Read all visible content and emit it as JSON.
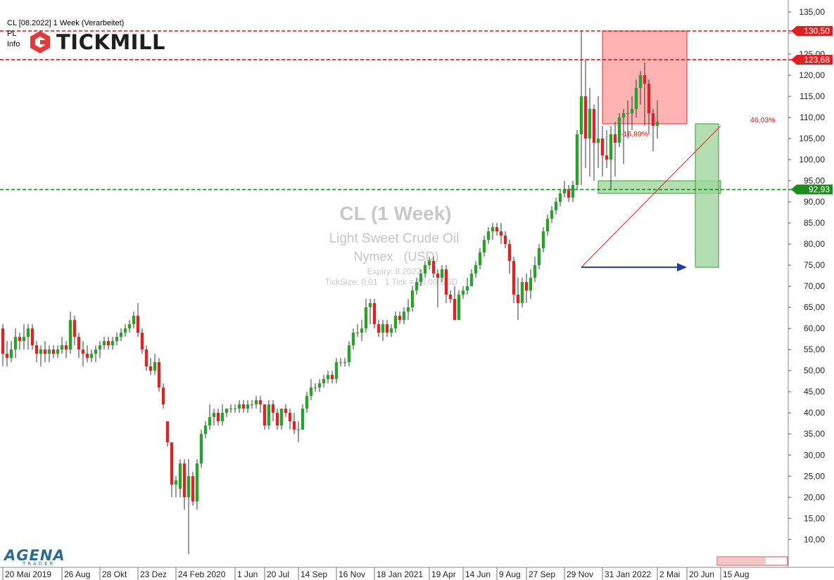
{
  "header": {
    "instrument_line": "CL [08.2022] 1 Week (Verarbeitet)",
    "line2": "PL",
    "line3": "Info"
  },
  "brand": {
    "name": "TICKMILL",
    "logo_color": "#e03a3a"
  },
  "footer_brand": {
    "name": "AGENA",
    "sub": "TRADER",
    "color": "#2e6a96"
  },
  "watermark": {
    "title": "CL (1 Week)",
    "name": "Light Sweet Crude Oil",
    "exchange": "Nymex   (USD)",
    "expiry": "Expiry: 8.2022",
    "ticksize": "TickSize: 0,01   1 Tick = 10,00 USD"
  },
  "annotations": {
    "pct_left": "-16,89%",
    "pct_right": "46,03%",
    "level_red_1": "130,50",
    "level_red_2": "123,68",
    "level_green": "92,93"
  },
  "colors": {
    "up": "#2ca02c",
    "down": "#d62728",
    "red_zone": "#ff9a9a",
    "green_zone": "#9fd69f",
    "red_line": "#e01010",
    "green_line": "#1a8a1a",
    "arrow": "#1f3d9e"
  },
  "chart_data": {
    "type": "candlestick",
    "y_axis": {
      "min": 5,
      "max": 136,
      "ticks": [
        "135,00",
        "130,00",
        "125,00",
        "120,00",
        "115,00",
        "110,00",
        "105,00",
        "100,00",
        "95,00",
        "90,00",
        "85,00",
        "80,00",
        "75,00",
        "70,00",
        "65,00",
        "60,00",
        "55,00",
        "50,00",
        "45,00",
        "40,00",
        "35,00",
        "30,00",
        "25,00",
        "20,00",
        "15,00",
        "10,00"
      ],
      "tick_values": [
        135,
        130,
        125,
        120,
        115,
        110,
        105,
        100,
        95,
        90,
        85,
        80,
        75,
        70,
        65,
        60,
        55,
        50,
        45,
        40,
        35,
        30,
        25,
        20,
        15,
        10
      ],
      "side": "right"
    },
    "x_axis": {
      "labels": [
        "20 Mai 2019",
        "26 Aug",
        "28 Okt",
        "23 Dez",
        "24 Feb 2020",
        "1 Jun",
        "20 Jul",
        "14 Sep",
        "16 Nov",
        "18 Jan 2021",
        "19 Apr",
        "14 Jun",
        "9 Aug",
        "27 Sep",
        "29 Nov",
        "31 Jan 2022",
        "2 Mai",
        "20 Jun",
        "15 Aug"
      ],
      "label_week_index": [
        0,
        14,
        23,
        32,
        41,
        55,
        62,
        70,
        79,
        88,
        101,
        109,
        117,
        124,
        133,
        142,
        155,
        162,
        170
      ]
    },
    "horizontal_levels": [
      {
        "value": 130.5,
        "label": "130,50",
        "color": "red"
      },
      {
        "value": 123.68,
        "label": "123,68",
        "color": "red"
      },
      {
        "value": 92.93,
        "label": "92,93",
        "color": "green"
      }
    ],
    "zones": [
      {
        "kind": "red",
        "x_from": 142,
        "x_to": 162,
        "y_from": 108.5,
        "y_to": 130.5
      },
      {
        "kind": "green",
        "x_from": 141,
        "x_to": 170,
        "y_from": 92.0,
        "y_to": 95.0
      },
      {
        "kind": "green",
        "x_from": 164,
        "x_to": 169.5,
        "y_from": 74.5,
        "y_to": 108.5
      }
    ],
    "trend_line": {
      "from": [
        137,
        74.5
      ],
      "to": [
        170,
        108.0
      ]
    },
    "arrow": {
      "from": [
        137,
        74.5
      ],
      "to": [
        162,
        74.5
      ]
    },
    "candles": [
      {
        "o": 60,
        "h": 61,
        "l": 51,
        "c": 54
      },
      {
        "o": 54,
        "h": 57,
        "l": 51,
        "c": 53
      },
      {
        "o": 53,
        "h": 57,
        "l": 52,
        "c": 55
      },
      {
        "o": 55,
        "h": 60,
        "l": 53,
        "c": 58
      },
      {
        "o": 58,
        "h": 59,
        "l": 55,
        "c": 57
      },
      {
        "o": 57,
        "h": 61,
        "l": 55,
        "c": 58
      },
      {
        "o": 58,
        "h": 61,
        "l": 55,
        "c": 60
      },
      {
        "o": 60,
        "h": 61,
        "l": 55,
        "c": 56
      },
      {
        "o": 56,
        "h": 57,
        "l": 52,
        "c": 54
      },
      {
        "o": 54,
        "h": 56,
        "l": 51,
        "c": 55
      },
      {
        "o": 55,
        "h": 57,
        "l": 52,
        "c": 54
      },
      {
        "o": 54,
        "h": 56,
        "l": 52,
        "c": 55
      },
      {
        "o": 55,
        "h": 56,
        "l": 53,
        "c": 54
      },
      {
        "o": 54,
        "h": 56,
        "l": 53,
        "c": 55
      },
      {
        "o": 55,
        "h": 58,
        "l": 54,
        "c": 56
      },
      {
        "o": 56,
        "h": 57,
        "l": 53,
        "c": 55
      },
      {
        "o": 55,
        "h": 64,
        "l": 54,
        "c": 62
      },
      {
        "o": 62,
        "h": 63,
        "l": 56,
        "c": 58
      },
      {
        "o": 58,
        "h": 59,
        "l": 53,
        "c": 55
      },
      {
        "o": 55,
        "h": 57,
        "l": 51,
        "c": 54
      },
      {
        "o": 54,
        "h": 56,
        "l": 52,
        "c": 53
      },
      {
        "o": 53,
        "h": 55,
        "l": 52,
        "c": 54
      },
      {
        "o": 54,
        "h": 56,
        "l": 52,
        "c": 55
      },
      {
        "o": 55,
        "h": 57,
        "l": 53,
        "c": 56
      },
      {
        "o": 56,
        "h": 58,
        "l": 55,
        "c": 57
      },
      {
        "o": 57,
        "h": 58,
        "l": 55,
        "c": 56
      },
      {
        "o": 56,
        "h": 58,
        "l": 55,
        "c": 57
      },
      {
        "o": 57,
        "h": 59,
        "l": 56,
        "c": 58
      },
      {
        "o": 58,
        "h": 60,
        "l": 57,
        "c": 59
      },
      {
        "o": 59,
        "h": 61,
        "l": 58,
        "c": 60
      },
      {
        "o": 60,
        "h": 62,
        "l": 59,
        "c": 61
      },
      {
        "o": 61,
        "h": 64,
        "l": 60,
        "c": 63
      },
      {
        "o": 63,
        "h": 66,
        "l": 58,
        "c": 59
      },
      {
        "o": 59,
        "h": 60,
        "l": 54,
        "c": 55
      },
      {
        "o": 55,
        "h": 56,
        "l": 50,
        "c": 51
      },
      {
        "o": 51,
        "h": 53,
        "l": 49,
        "c": 50
      },
      {
        "o": 50,
        "h": 54,
        "l": 49,
        "c": 52
      },
      {
        "o": 52,
        "h": 53,
        "l": 45,
        "c": 46
      },
      {
        "o": 46,
        "h": 47,
        "l": 41,
        "c": 42
      },
      {
        "o": 38,
        "h": 37,
        "l": 32,
        "c": 33
      },
      {
        "o": 33,
        "h": 33,
        "l": 20,
        "c": 23
      },
      {
        "o": 23,
        "h": 25,
        "l": 20,
        "c": 24
      },
      {
        "o": 22,
        "h": 29,
        "l": 20,
        "c": 28
      },
      {
        "o": 28,
        "h": 29,
        "l": 17,
        "c": 20
      },
      {
        "o": 20,
        "h": 29,
        "l": 6.5,
        "c": 25
      },
      {
        "o": 25,
        "h": 26,
        "l": 18,
        "c": 19
      },
      {
        "o": 19,
        "h": 29,
        "l": 17,
        "c": 28
      },
      {
        "o": 28,
        "h": 36,
        "l": 27,
        "c": 35
      },
      {
        "o": 35,
        "h": 38,
        "l": 34,
        "c": 37
      },
      {
        "o": 37,
        "h": 42,
        "l": 36,
        "c": 39
      },
      {
        "o": 39,
        "h": 41,
        "l": 37,
        "c": 40
      },
      {
        "o": 40,
        "h": 41,
        "l": 37,
        "c": 38
      },
      {
        "o": 38,
        "h": 42,
        "l": 37,
        "c": 40
      },
      {
        "o": 40,
        "h": 41,
        "l": 39,
        "c": 41
      },
      {
        "o": 41,
        "h": 42,
        "l": 40,
        "c": 41
      },
      {
        "o": 41,
        "h": 42,
        "l": 40,
        "c": 41
      },
      {
        "o": 41,
        "h": 43,
        "l": 40,
        "c": 42
      },
      {
        "o": 42,
        "h": 43,
        "l": 40,
        "c": 41
      },
      {
        "o": 41,
        "h": 43,
        "l": 40,
        "c": 42
      },
      {
        "o": 42,
        "h": 43,
        "l": 41,
        "c": 42
      },
      {
        "o": 42,
        "h": 44,
        "l": 41,
        "c": 43
      },
      {
        "o": 43,
        "h": 44,
        "l": 40,
        "c": 42
      },
      {
        "o": 42,
        "h": 42,
        "l": 36,
        "c": 37
      },
      {
        "o": 37,
        "h": 43,
        "l": 36,
        "c": 42
      },
      {
        "o": 42,
        "h": 43,
        "l": 38,
        "c": 40
      },
      {
        "o": 40,
        "h": 41,
        "l": 36,
        "c": 37
      },
      {
        "o": 37,
        "h": 41,
        "l": 36,
        "c": 41
      },
      {
        "o": 41,
        "h": 42,
        "l": 39,
        "c": 40
      },
      {
        "o": 40,
        "h": 41,
        "l": 36,
        "c": 38
      },
      {
        "o": 38,
        "h": 40,
        "l": 35,
        "c": 36
      },
      {
        "o": 36,
        "h": 38,
        "l": 33,
        "c": 36
      },
      {
        "o": 36,
        "h": 42,
        "l": 36,
        "c": 41
      },
      {
        "o": 41,
        "h": 45,
        "l": 40,
        "c": 44
      },
      {
        "o": 44,
        "h": 48,
        "l": 43,
        "c": 46
      },
      {
        "o": 46,
        "h": 47,
        "l": 45,
        "c": 46
      },
      {
        "o": 46,
        "h": 48,
        "l": 45,
        "c": 47
      },
      {
        "o": 47,
        "h": 49,
        "l": 46,
        "c": 48
      },
      {
        "o": 48,
        "h": 50,
        "l": 47,
        "c": 49
      },
      {
        "o": 49,
        "h": 50,
        "l": 47,
        "c": 48
      },
      {
        "o": 48,
        "h": 53,
        "l": 47,
        "c": 52
      },
      {
        "o": 52,
        "h": 53,
        "l": 51,
        "c": 52
      },
      {
        "o": 52,
        "h": 53,
        "l": 51,
        "c": 52
      },
      {
        "o": 52,
        "h": 57,
        "l": 51,
        "c": 56
      },
      {
        "o": 56,
        "h": 60,
        "l": 55,
        "c": 59
      },
      {
        "o": 59,
        "h": 61,
        "l": 58,
        "c": 59
      },
      {
        "o": 59,
        "h": 62,
        "l": 57,
        "c": 60
      },
      {
        "o": 60,
        "h": 67,
        "l": 59,
        "c": 65
      },
      {
        "o": 65,
        "h": 67,
        "l": 61,
        "c": 66
      },
      {
        "o": 66,
        "h": 67,
        "l": 60,
        "c": 61
      },
      {
        "o": 61,
        "h": 62,
        "l": 58,
        "c": 59
      },
      {
        "o": 59,
        "h": 62,
        "l": 57,
        "c": 61
      },
      {
        "o": 61,
        "h": 62,
        "l": 58,
        "c": 59
      },
      {
        "o": 59,
        "h": 61,
        "l": 58,
        "c": 60
      },
      {
        "o": 60,
        "h": 64,
        "l": 59,
        "c": 63
      },
      {
        "o": 63,
        "h": 64,
        "l": 61,
        "c": 62
      },
      {
        "o": 62,
        "h": 65,
        "l": 61,
        "c": 64
      },
      {
        "o": 64,
        "h": 67,
        "l": 62,
        "c": 65
      },
      {
        "o": 65,
        "h": 70,
        "l": 64,
        "c": 69
      },
      {
        "o": 69,
        "h": 72,
        "l": 68,
        "c": 71
      },
      {
        "o": 71,
        "h": 74,
        "l": 70,
        "c": 73
      },
      {
        "o": 73,
        "h": 76,
        "l": 72,
        "c": 75
      },
      {
        "o": 75,
        "h": 77,
        "l": 74,
        "c": 76
      },
      {
        "o": 76,
        "h": 77,
        "l": 72,
        "c": 73
      },
      {
        "o": 73,
        "h": 74,
        "l": 65,
        "c": 72
      },
      {
        "o": 72,
        "h": 75,
        "l": 71,
        "c": 74
      },
      {
        "o": 74,
        "h": 75,
        "l": 66,
        "c": 68
      },
      {
        "o": 68,
        "h": 69,
        "l": 66,
        "c": 67
      },
      {
        "o": 67,
        "h": 70,
        "l": 62,
        "c": 62
      },
      {
        "o": 62,
        "h": 69,
        "l": 62,
        "c": 68
      },
      {
        "o": 68,
        "h": 70,
        "l": 67,
        "c": 69
      },
      {
        "o": 69,
        "h": 72,
        "l": 68,
        "c": 70
      },
      {
        "o": 70,
        "h": 74,
        "l": 70,
        "c": 73
      },
      {
        "o": 73,
        "h": 76,
        "l": 72,
        "c": 75
      },
      {
        "o": 75,
        "h": 79,
        "l": 74,
        "c": 78
      },
      {
        "o": 78,
        "h": 82,
        "l": 77,
        "c": 81
      },
      {
        "o": 81,
        "h": 84,
        "l": 80,
        "c": 83
      },
      {
        "o": 83,
        "h": 85,
        "l": 81,
        "c": 84
      },
      {
        "o": 84,
        "h": 85,
        "l": 82,
        "c": 83
      },
      {
        "o": 83,
        "h": 85,
        "l": 80,
        "c": 82
      },
      {
        "o": 82,
        "h": 83,
        "l": 79,
        "c": 80
      },
      {
        "o": 80,
        "h": 81,
        "l": 73,
        "c": 76
      },
      {
        "o": 76,
        "h": 77,
        "l": 66,
        "c": 68
      },
      {
        "o": 68,
        "h": 72,
        "l": 62,
        "c": 66
      },
      {
        "o": 66,
        "h": 72,
        "l": 65,
        "c": 71
      },
      {
        "o": 71,
        "h": 73,
        "l": 66,
        "c": 69
      },
      {
        "o": 69,
        "h": 74,
        "l": 67,
        "c": 72
      },
      {
        "o": 72,
        "h": 77,
        "l": 71,
        "c": 75
      },
      {
        "o": 75,
        "h": 80,
        "l": 74,
        "c": 79
      },
      {
        "o": 79,
        "h": 84,
        "l": 78,
        "c": 83
      },
      {
        "o": 83,
        "h": 87,
        "l": 82,
        "c": 86
      },
      {
        "o": 86,
        "h": 89,
        "l": 85,
        "c": 88
      },
      {
        "o": 88,
        "h": 91,
        "l": 87,
        "c": 90
      },
      {
        "o": 90,
        "h": 93,
        "l": 89,
        "c": 92
      },
      {
        "o": 92,
        "h": 95,
        "l": 91,
        "c": 93
      },
      {
        "o": 93,
        "h": 94,
        "l": 90,
        "c": 91
      },
      {
        "o": 91,
        "h": 95,
        "l": 90,
        "c": 94
      },
      {
        "o": 94,
        "h": 107,
        "l": 93,
        "c": 106
      },
      {
        "o": 106,
        "h": 130.5,
        "l": 94,
        "c": 115
      },
      {
        "o": 115,
        "h": 123.7,
        "l": 98,
        "c": 105
      },
      {
        "o": 105,
        "h": 117,
        "l": 96,
        "c": 112
      },
      {
        "o": 112,
        "h": 113,
        "l": 95,
        "c": 104
      },
      {
        "o": 104,
        "h": 115,
        "l": 98,
        "c": 105
      },
      {
        "o": 105,
        "h": 108,
        "l": 96,
        "c": 101
      },
      {
        "o": 101,
        "h": 107,
        "l": 98,
        "c": 100
      },
      {
        "o": 100,
        "h": 108,
        "l": 93,
        "c": 106
      },
      {
        "o": 106,
        "h": 109,
        "l": 96,
        "c": 104
      },
      {
        "o": 104,
        "h": 111,
        "l": 103,
        "c": 110
      },
      {
        "o": 110,
        "h": 112,
        "l": 99,
        "c": 111
      },
      {
        "o": 111,
        "h": 114,
        "l": 105,
        "c": 111
      },
      {
        "o": 111,
        "h": 115,
        "l": 107,
        "c": 112
      },
      {
        "o": 112,
        "h": 119,
        "l": 110,
        "c": 117
      },
      {
        "o": 117,
        "h": 121,
        "l": 113,
        "c": 120
      },
      {
        "o": 120,
        "h": 123,
        "l": 108,
        "c": 118
      },
      {
        "o": 118,
        "h": 119,
        "l": 106,
        "c": 111
      },
      {
        "o": 111,
        "h": 112,
        "l": 102,
        "c": 108
      },
      {
        "o": 108,
        "h": 114,
        "l": 105,
        "c": 109
      }
    ]
  }
}
